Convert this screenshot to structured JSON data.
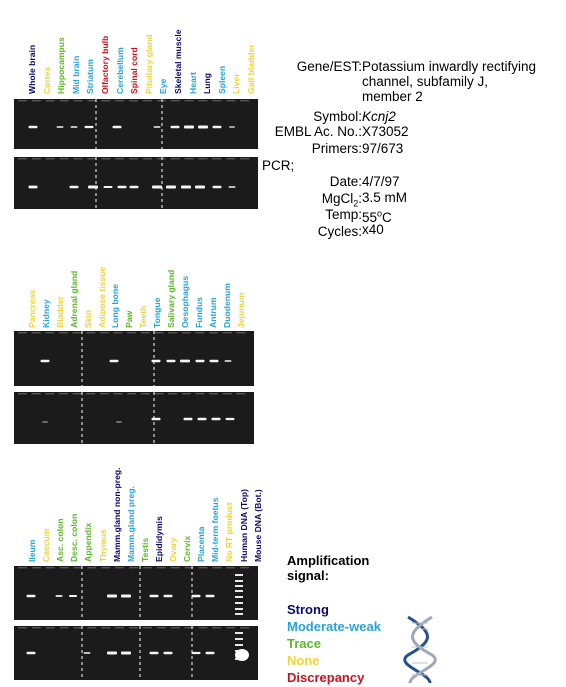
{
  "panels": [
    {
      "lanes": [
        {
          "label": "Whole brain",
          "color": "#0a0a6e"
        },
        {
          "label": "Cortex",
          "color": "#f0d23c"
        },
        {
          "label": "Hippocampus",
          "color": "#5cb82a"
        },
        {
          "label": "Mid brain",
          "color": "#27a3d8"
        },
        {
          "label": "Striatum",
          "color": "#27a3d8"
        },
        {
          "label": "Olfactory bulb",
          "color": "#c8141e"
        },
        {
          "label": "Cerebellum",
          "color": "#27a3d8"
        },
        {
          "label": "Spinal cord",
          "color": "#c8141e"
        },
        {
          "label": "Pituitary gland",
          "color": "#f0d23c"
        },
        {
          "label": "Eye",
          "color": "#27a3d8"
        },
        {
          "label": "Skeletal muscle",
          "color": "#0a0a6e"
        },
        {
          "label": "Heart",
          "color": "#27a3d8"
        },
        {
          "label": "Lung",
          "color": "#0a0a6e"
        },
        {
          "label": "Spleen",
          "color": "#27a3d8"
        },
        {
          "label": "Liver",
          "color": "#f0d23c"
        },
        {
          "label": "Gall bladder",
          "color": "#f0d23c"
        }
      ]
    },
    {
      "lanes": [
        {
          "label": "Pancreas",
          "color": "#f0d23c"
        },
        {
          "label": "Kidney",
          "color": "#27a3d8"
        },
        {
          "label": "Bladder",
          "color": "#f0d23c"
        },
        {
          "label": "Adrenal gland",
          "color": "#5cb82a"
        },
        {
          "label": "Skin",
          "color": "#f0d23c"
        },
        {
          "label": "Adipose tissue",
          "color": "#f0d23c"
        },
        {
          "label": "Long bone",
          "color": "#27a3d8"
        },
        {
          "label": "Paw",
          "color": "#5cb82a"
        },
        {
          "label": "Teeth",
          "color": "#f0d23c"
        },
        {
          "label": "Tongue",
          "color": "#27a3d8"
        },
        {
          "label": "Salivary gland",
          "color": "#5cb82a"
        },
        {
          "label": "Oesophagus",
          "color": "#27a3d8"
        },
        {
          "label": "Fundus",
          "color": "#27a3d8"
        },
        {
          "label": "Antrum",
          "color": "#27a3d8"
        },
        {
          "label": "Duodenum",
          "color": "#27a3d8"
        },
        {
          "label": "Jejunum",
          "color": "#f0d23c"
        }
      ]
    },
    {
      "lanes": [
        {
          "label": "Ileum",
          "color": "#27a3d8"
        },
        {
          "label": "Caecum",
          "color": "#f0d23c"
        },
        {
          "label": "Asc. colon",
          "color": "#5cb82a"
        },
        {
          "label": "Desc. colon",
          "color": "#5cb82a"
        },
        {
          "label": "Appendix",
          "color": "#5cb82a"
        },
        {
          "label": "Thymus",
          "color": "#f0d23c"
        },
        {
          "label": "Mamm.gland non-preg.",
          "color": "#0a0a6e"
        },
        {
          "label": "Mamm.gland preg.",
          "color": "#27a3d8"
        },
        {
          "label": "Testis",
          "color": "#5cb82a"
        },
        {
          "label": "Epididymis",
          "color": "#0a0a6e"
        },
        {
          "label": "Ovary",
          "color": "#f0d23c"
        },
        {
          "label": "Cervix",
          "color": "#5cb82a"
        },
        {
          "label": "Placenta",
          "color": "#27a3d8"
        },
        {
          "label": "Mid-term foetus",
          "color": "#27a3d8"
        },
        {
          "label": "No RT product",
          "color": "#f0d23c"
        },
        {
          "label": "Human DNA (Top)",
          "color": "#0a0a6e"
        },
        {
          "label": "Mouse DNA (Bot.)",
          "color": "#0a0a6e"
        }
      ]
    }
  ],
  "info": {
    "gene_key": "Gene/EST:",
    "gene_lines": [
      "Potassium inwardly rectifying",
      "channel, subfamily J,",
      "member 2"
    ],
    "symbol_key": "Symbol:",
    "symbol_val": "Kcnj2",
    "embl_key": "EMBL Ac. No.:",
    "embl_val": "X73052",
    "primers_key": "Primers:",
    "primers_val": "97/673",
    "pcr_key": "PCR;",
    "date_key": "Date:",
    "date_val": "4/7/97",
    "mgcl_key_pre": "MgCl",
    "mgcl_key_sub": "2",
    "mgcl_key_post": ":",
    "mgcl_val": "3.5 mM",
    "temp_key": "Temp:",
    "temp_val_pre": "55",
    "temp_val_sup": "o",
    "temp_val_post": "C",
    "cycles_key": "Cycles:",
    "cycles_val": "x40"
  },
  "legend": {
    "title_line1": "Amplification",
    "title_line2": "signal:",
    "items": [
      {
        "label": "Strong",
        "color": "#0a0a6e"
      },
      {
        "label": "Moderate-weak",
        "color": "#27a3d8"
      },
      {
        "label": "Trace",
        "color": "#5cb82a"
      },
      {
        "label": "None",
        "color": "#f0d23c"
      },
      {
        "label": "Discrepancy",
        "color": "#c8141e"
      }
    ]
  }
}
